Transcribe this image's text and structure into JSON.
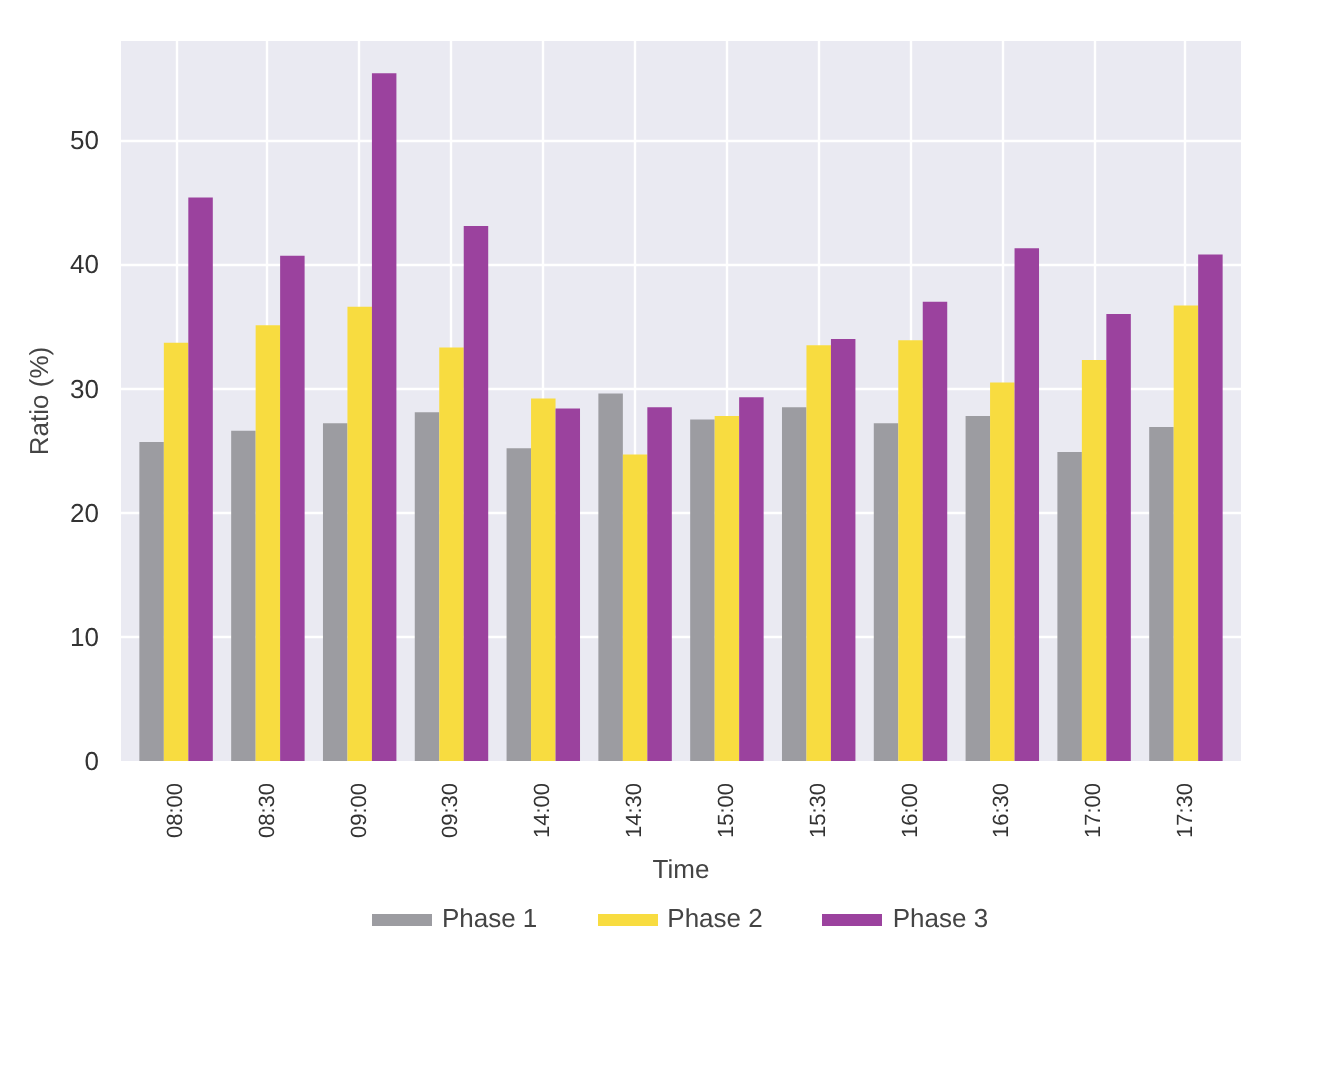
{
  "chart_data": {
    "type": "bar",
    "xlabel": "Time",
    "ylabel": "Ratio (%)",
    "categories": [
      "08:00",
      "08:30",
      "09:00",
      "09:30",
      "14:00",
      "14:30",
      "15:00",
      "15:30",
      "16:00",
      "16:30",
      "17:00",
      "17:30"
    ],
    "series": [
      {
        "name": "Phase 1",
        "color": "#9c9ca1",
        "values": [
          25.7,
          26.6,
          27.2,
          28.1,
          25.2,
          29.6,
          27.5,
          28.5,
          27.2,
          27.8,
          24.9,
          26.9
        ]
      },
      {
        "name": "Phase 2",
        "color": "#f8dc40",
        "values": [
          33.7,
          35.1,
          36.6,
          33.3,
          29.2,
          24.7,
          27.8,
          33.5,
          33.9,
          30.5,
          32.3,
          36.7
        ]
      },
      {
        "name": "Phase 3",
        "color": "#9b429e",
        "values": [
          45.4,
          40.7,
          55.4,
          43.1,
          28.4,
          28.5,
          29.3,
          34.0,
          37.0,
          41.3,
          36.0,
          40.8
        ]
      }
    ],
    "ylim": [
      0,
      58
    ],
    "yticks": [
      0,
      10,
      20,
      30,
      40,
      50
    ],
    "grid": true,
    "legend": "bottom"
  }
}
